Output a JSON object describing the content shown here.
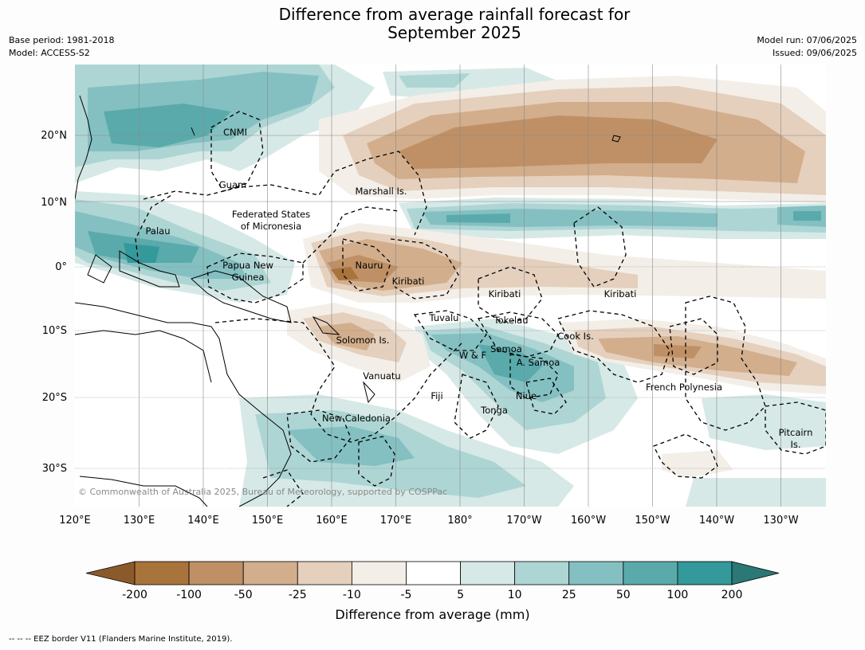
{
  "title": {
    "line1": "Difference from average rainfall forecast for",
    "line2": "September 2025"
  },
  "meta_left": {
    "base_period": "Base period: 1981-2018",
    "model": "Model: ACCESS-S2"
  },
  "meta_right": {
    "model_run": "Model run: 07/06/2025",
    "issued": "Issued: 09/06/2025"
  },
  "map": {
    "lon_labels": [
      "120°E",
      "130°E",
      "140°E",
      "150°E",
      "160°E",
      "170°E",
      "180°",
      "170°W",
      "160°W",
      "150°W",
      "140°W",
      "130°W"
    ],
    "lat_labels": [
      "20°N",
      "10°N",
      "0°",
      "10°S",
      "20°S",
      "30°S"
    ],
    "region_labels": [
      {
        "text": "CNMI"
      },
      {
        "text": "Guam"
      },
      {
        "text": "Marshall Is."
      },
      {
        "text": "Federated States"
      },
      {
        "text": "of Micronesia"
      },
      {
        "text": "Palau"
      },
      {
        "text": "Papua New"
      },
      {
        "text": "Guinea"
      },
      {
        "text": "Nauru"
      },
      {
        "text": "Kiribati"
      },
      {
        "text": "Kiribati"
      },
      {
        "text": "Kiribati"
      },
      {
        "text": "Tuvalu"
      },
      {
        "text": "Tokelau"
      },
      {
        "text": "Solomon Is."
      },
      {
        "text": "Cook Is."
      },
      {
        "text": "Samoa"
      },
      {
        "text": "W & F"
      },
      {
        "text": "A. Samoa"
      },
      {
        "text": "Vanuatu"
      },
      {
        "text": "Fiji"
      },
      {
        "text": "Niue"
      },
      {
        "text": "Tonga"
      },
      {
        "text": "French Polynesia"
      },
      {
        "text": "New Caledonia"
      },
      {
        "text": "Pitcairn"
      },
      {
        "text": "Is."
      }
    ],
    "copyright": "© Commonwealth of Australia 2025, Bureau of Meteorology, supported by COSPPac"
  },
  "colorbar": {
    "ticks": [
      "-200",
      "-100",
      "-50",
      "-25",
      "-10",
      "-5",
      "5",
      "10",
      "25",
      "50",
      "100",
      "200"
    ],
    "colors": [
      "#a9733c",
      "#bf9065",
      "#d2ae8c",
      "#e5d0bd",
      "#f3efe8",
      "#ffffff",
      "#d6e9e7",
      "#add5d4",
      "#84c0c1",
      "#5aaaab",
      "#33999a"
    ],
    "extend_low_color": "#8b5a2b",
    "extend_high_color": "#2b7876",
    "label": "Difference from average (mm)"
  },
  "footer": "--  --  -- EEZ border V11 (Flanders Marine Institute, 2019)."
}
